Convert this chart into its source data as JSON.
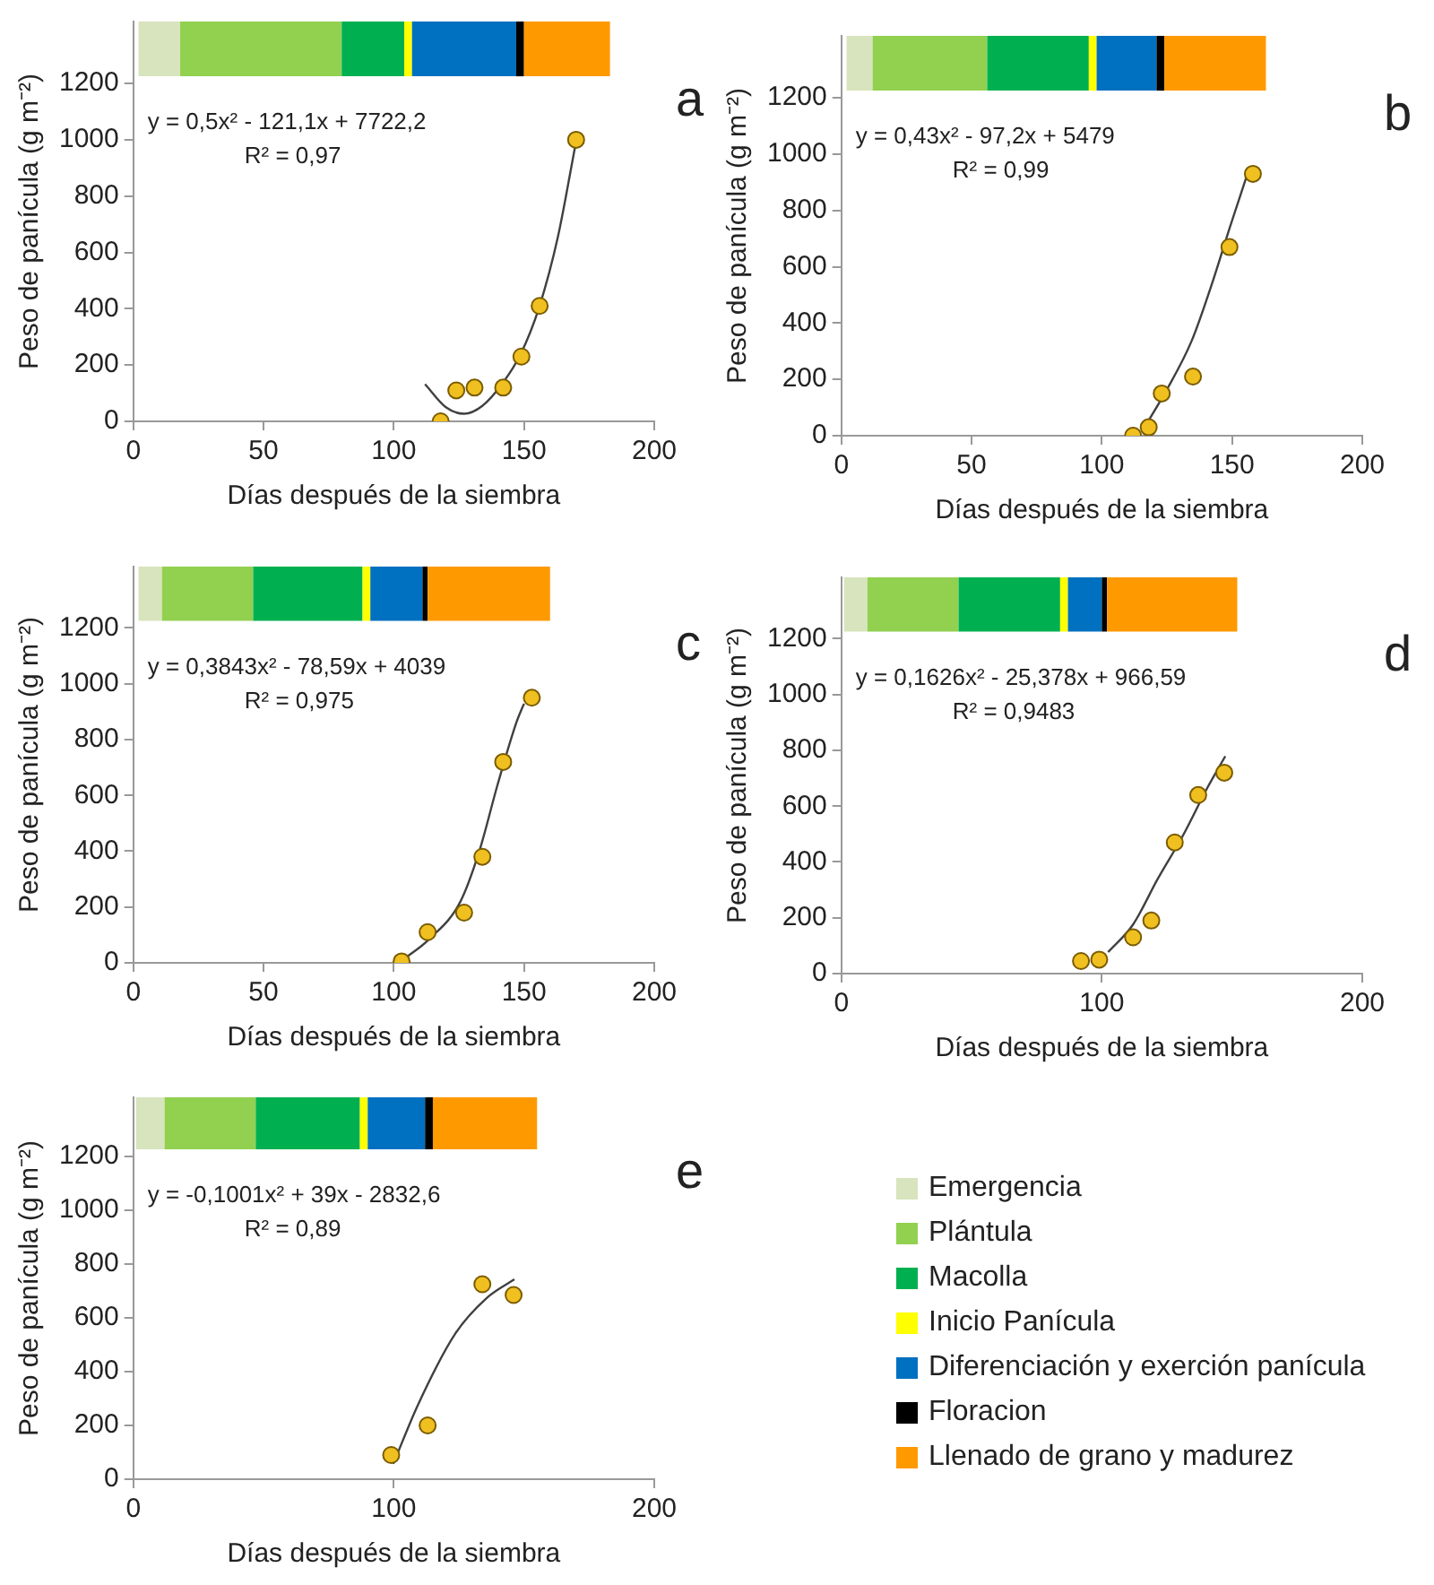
{
  "chart_data": [
    {
      "type": "scatter",
      "title": "a",
      "xlabel": "Días después de la siembra",
      "ylabel": "Peso de panícula (g m⁻²)",
      "xlim": [
        0,
        200
      ],
      "xticks": [
        0,
        50,
        100,
        150,
        200
      ],
      "ylim": [
        0,
        1420
      ],
      "yticks": [
        0,
        200,
        400,
        600,
        800,
        1000,
        1200
      ],
      "grid": false,
      "legend": false,
      "annotations": [
        "y = 0,5x² - 121,1x + 7722,2",
        "R² = 0,97"
      ],
      "bands": [
        {
          "axis": "x",
          "from": 2,
          "to": 18,
          "color": "#d7e4bd"
        },
        {
          "axis": "x",
          "from": 18,
          "to": 80,
          "color": "#92d050"
        },
        {
          "axis": "x",
          "from": 80,
          "to": 104,
          "color": "#00b050"
        },
        {
          "axis": "x",
          "from": 104,
          "to": 107,
          "color": "#ffff00"
        },
        {
          "axis": "x",
          "from": 107,
          "to": 147,
          "color": "#0070c0"
        },
        {
          "axis": "x",
          "from": 147,
          "to": 150,
          "color": "#000000"
        },
        {
          "axis": "x",
          "from": 150,
          "to": 183,
          "color": "#ff9900"
        }
      ],
      "series": [
        {
          "type": "scatter",
          "marker": "circle",
          "color": "#f0c020",
          "x": [
            118,
            124,
            131,
            142,
            149,
            156,
            170
          ],
          "values": [
            0,
            110,
            120,
            120,
            230,
            410,
            1000
          ]
        },
        {
          "type": "line",
          "marker": "none",
          "line_style": "solid",
          "color": "#404040",
          "x": [
            112,
            120,
            127,
            134,
            141.5,
            148.6,
            155.8,
            163,
            169.7
          ],
          "values": [
            132,
            50,
            27,
            55,
            132,
            237,
            405,
            655,
            980
          ]
        }
      ]
    },
    {
      "type": "scatter",
      "title": "b",
      "xlabel": "Días después de la siembra",
      "ylabel": "Peso de panícula (g m⁻²)",
      "xlim": [
        0,
        200
      ],
      "xticks": [
        0,
        50,
        100,
        150,
        200
      ],
      "ylim": [
        0,
        1420
      ],
      "yticks": [
        0,
        200,
        400,
        600,
        800,
        1000,
        1200
      ],
      "grid": false,
      "legend": false,
      "annotations": [
        "y = 0,43x² - 97,2x + 5479",
        "R² = 0,99"
      ],
      "bands": [
        {
          "axis": "x",
          "from": 2,
          "to": 12,
          "color": "#d7e4bd"
        },
        {
          "axis": "x",
          "from": 12,
          "to": 56,
          "color": "#92d050"
        },
        {
          "axis": "x",
          "from": 56,
          "to": 95,
          "color": "#00b050"
        },
        {
          "axis": "x",
          "from": 95,
          "to": 98,
          "color": "#ffff00"
        },
        {
          "axis": "x",
          "from": 98,
          "to": 121,
          "color": "#0070c0"
        },
        {
          "axis": "x",
          "from": 121,
          "to": 124,
          "color": "#000000"
        },
        {
          "axis": "x",
          "from": 124,
          "to": 163,
          "color": "#ff9900"
        }
      ],
      "series": [
        {
          "type": "scatter",
          "marker": "circle",
          "color": "#f0c020",
          "x": [
            112,
            118,
            123,
            135,
            149,
            158
          ],
          "values": [
            0,
            30,
            150,
            210,
            670,
            930
          ]
        },
        {
          "type": "line",
          "marker": "none",
          "line_style": "solid",
          "color": "#404040",
          "x": [
            115.6,
            124.8,
            134.5,
            142.9,
            148.9,
            155.6
          ],
          "values": [
            18,
            161,
            337,
            557,
            733,
            921
          ]
        }
      ]
    },
    {
      "type": "scatter",
      "title": "c",
      "xlabel": "Días después de la siembra",
      "ylabel": "Peso de panícula (g m⁻²)",
      "xlim": [
        0,
        200
      ],
      "xticks": [
        0,
        50,
        100,
        150,
        200
      ],
      "ylim": [
        0,
        1420
      ],
      "yticks": [
        0,
        200,
        400,
        600,
        800,
        1000,
        1200
      ],
      "grid": false,
      "legend": false,
      "annotations": [
        "y = 0,3843x² - 78,59x + 4039",
        "R² = 0,975"
      ],
      "bands": [
        {
          "axis": "x",
          "from": 2,
          "to": 11,
          "color": "#d7e4bd"
        },
        {
          "axis": "x",
          "from": 11,
          "to": 46,
          "color": "#92d050"
        },
        {
          "axis": "x",
          "from": 46,
          "to": 88,
          "color": "#00b050"
        },
        {
          "axis": "x",
          "from": 88,
          "to": 91,
          "color": "#ffff00"
        },
        {
          "axis": "x",
          "from": 91,
          "to": 111,
          "color": "#0070c0"
        },
        {
          "axis": "x",
          "from": 111,
          "to": 113,
          "color": "#000000"
        },
        {
          "axis": "x",
          "from": 113,
          "to": 160,
          "color": "#ff9900"
        }
      ],
      "series": [
        {
          "type": "scatter",
          "marker": "circle",
          "color": "#f0c020",
          "x": [
            103,
            113,
            127,
            134,
            142,
            153
          ],
          "values": [
            5,
            110,
            180,
            380,
            720,
            950
          ]
        },
        {
          "type": "line",
          "marker": "none",
          "line_style": "solid",
          "color": "#404040",
          "x": [
            103.8,
            113.5,
            125.5,
            132.7,
            139.9,
            147.1,
            150
          ],
          "values": [
            13,
            84,
            218,
            396,
            640,
            862,
            929
          ]
        }
      ]
    },
    {
      "type": "scatter",
      "title": "d",
      "xlabel": "Días después de la siembra",
      "ylabel": "Peso de panícula (g m⁻²)",
      "xlim": [
        0,
        200
      ],
      "xticks": [
        0,
        100,
        200
      ],
      "ylim": [
        0,
        1420
      ],
      "yticks": [
        0,
        200,
        400,
        600,
        800,
        1000,
        1200
      ],
      "grid": false,
      "legend": false,
      "annotations": [
        "y = 0,1626x² - 25,378x + 966,59",
        "R² = 0,9483"
      ],
      "bands": [
        {
          "axis": "x",
          "from": 1,
          "to": 10,
          "color": "#d7e4bd"
        },
        {
          "axis": "x",
          "from": 10,
          "to": 45,
          "color": "#92d050"
        },
        {
          "axis": "x",
          "from": 45,
          "to": 84,
          "color": "#00b050"
        },
        {
          "axis": "x",
          "from": 84,
          "to": 87,
          "color": "#ffff00"
        },
        {
          "axis": "x",
          "from": 87,
          "to": 100,
          "color": "#0070c0"
        },
        {
          "axis": "x",
          "from": 100,
          "to": 102,
          "color": "#000000"
        },
        {
          "axis": "x",
          "from": 102,
          "to": 152,
          "color": "#ff9900"
        }
      ],
      "series": [
        {
          "type": "scatter",
          "marker": "circle",
          "color": "#f0c020",
          "x": [
            92,
            99,
            112,
            119,
            128,
            137,
            147
          ],
          "values": [
            45,
            50,
            130,
            190,
            470,
            640,
            720
          ]
        },
        {
          "type": "line",
          "marker": "none",
          "line_style": "solid",
          "color": "#404040",
          "x": [
            102.4,
            112,
            121.5,
            131.1,
            140.7,
            147.4
          ],
          "values": [
            77,
            176,
            340,
            494,
            669,
            779
          ]
        }
      ]
    },
    {
      "type": "scatter",
      "title": "e",
      "xlabel": "Días después de la siembra",
      "ylabel": "Peso de panícula (g m⁻²)",
      "xlim": [
        0,
        200
      ],
      "xticks": [
        0,
        100,
        200
      ],
      "ylim": [
        0,
        1420
      ],
      "yticks": [
        0,
        200,
        400,
        600,
        800,
        1000,
        1200
      ],
      "grid": false,
      "legend": false,
      "annotations": [
        "y = -0,1001x² + 39x - 2832,6",
        "R² = 0,89"
      ],
      "bands": [
        {
          "axis": "x",
          "from": 1,
          "to": 12,
          "color": "#d7e4bd"
        },
        {
          "axis": "x",
          "from": 12,
          "to": 47,
          "color": "#92d050"
        },
        {
          "axis": "x",
          "from": 47,
          "to": 87,
          "color": "#00b050"
        },
        {
          "axis": "x",
          "from": 87,
          "to": 90,
          "color": "#ffff00"
        },
        {
          "axis": "x",
          "from": 90,
          "to": 112,
          "color": "#0070c0"
        },
        {
          "axis": "x",
          "from": 112,
          "to": 115,
          "color": "#000000"
        },
        {
          "axis": "x",
          "from": 115,
          "to": 155,
          "color": "#ff9900"
        }
      ],
      "series": [
        {
          "type": "scatter",
          "marker": "circle",
          "color": "#f0c020",
          "x": [
            99,
            113,
            134,
            146
          ],
          "values": [
            90,
            200,
            725,
            685
          ]
        },
        {
          "type": "line",
          "marker": "none",
          "line_style": "solid",
          "color": "#404040",
          "x": [
            99.8,
            109.3,
            123.6,
            135.6,
            146.3
          ],
          "values": [
            57,
            277,
            541,
            673,
            743
          ]
        }
      ]
    },
    {
      "type": "other",
      "categories": [
        "Emergencia",
        "Plántula",
        "Macolla",
        "Inicio Panícula",
        "Diferenciación y exerción panícula",
        "Floracion",
        "Llenado de grano y madurez"
      ],
      "colors": [
        "#d7e4bd",
        "#92d050",
        "#00b050",
        "#ffff00",
        "#0070c0",
        "#000000",
        "#ff9900"
      ]
    }
  ]
}
